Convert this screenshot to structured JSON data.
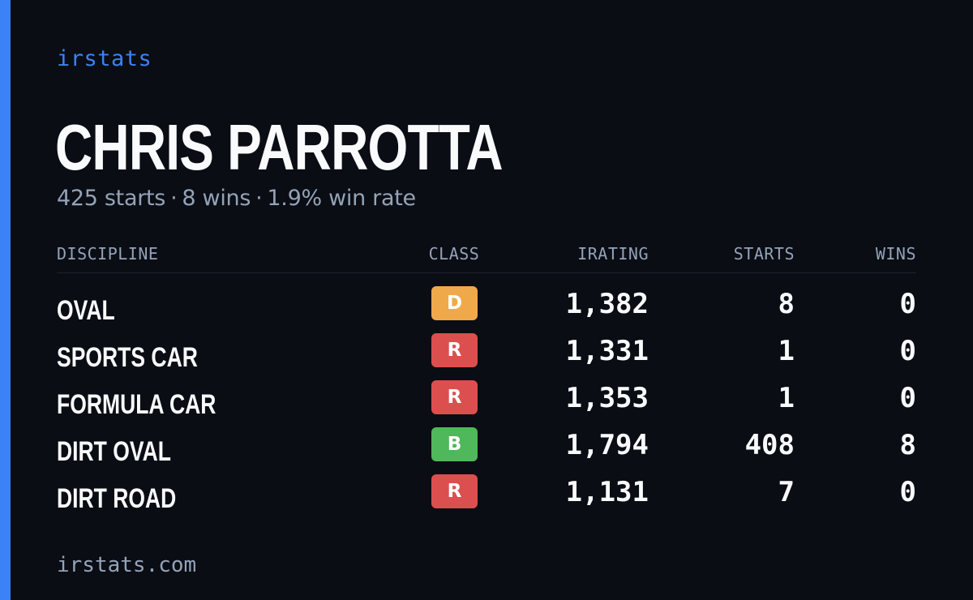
{
  "brand": "irstats",
  "driver": {
    "name": "CHRIS PARROTTA",
    "starts_text": "425 starts",
    "wins_text": "8 wins",
    "win_rate_text": "1.9% win rate",
    "separator": "·"
  },
  "table": {
    "headers": {
      "discipline": "DISCIPLINE",
      "class": "CLASS",
      "irating": "IRATING",
      "starts": "STARTS",
      "wins": "WINS"
    },
    "rows": [
      {
        "discipline": "OVAL",
        "class": "D",
        "class_color": "#f0a94a",
        "irating": "1,382",
        "starts": "8",
        "wins": "0"
      },
      {
        "discipline": "SPORTS CAR",
        "class": "R",
        "class_color": "#dc4f4f",
        "irating": "1,331",
        "starts": "1",
        "wins": "0"
      },
      {
        "discipline": "FORMULA CAR",
        "class": "R",
        "class_color": "#dc4f4f",
        "irating": "1,353",
        "starts": "1",
        "wins": "0"
      },
      {
        "discipline": "DIRT OVAL",
        "class": "B",
        "class_color": "#4fb85a",
        "irating": "1,794",
        "starts": "408",
        "wins": "8"
      },
      {
        "discipline": "DIRT ROAD",
        "class": "R",
        "class_color": "#dc4f4f",
        "irating": "1,131",
        "starts": "7",
        "wins": "0"
      }
    ]
  },
  "footer": "irstats.com",
  "colors": {
    "accent": "#3b82f6",
    "background": "#0a0d14",
    "muted_text": "#94a3b8",
    "text": "#f8fafc"
  }
}
